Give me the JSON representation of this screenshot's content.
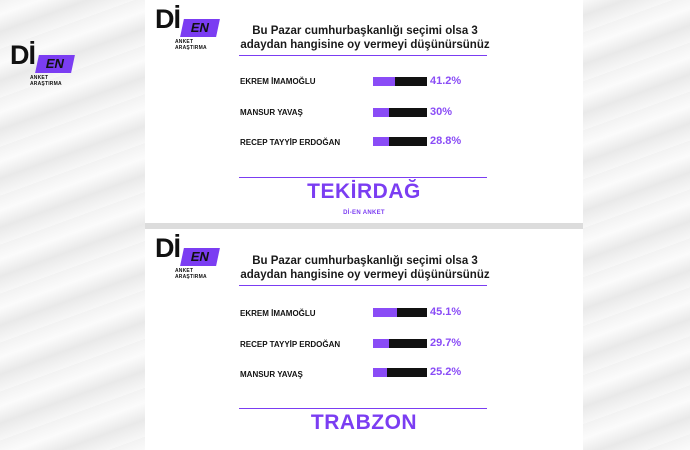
{
  "brand": {
    "di": "Dİ",
    "en": "EN",
    "sub": "ANKET ARAŞTIRMA",
    "accent": "#8a4cf6"
  },
  "panels": [
    {
      "question": "Bu Pazar cumhurbaşkanlığı seçimi olsa 3 adaydan hangisine oy vermeyi düşünürsünüz",
      "candidates": [
        {
          "name": "EKREM İMAMOĞLU",
          "percent": "41.2%",
          "value": 41.2
        },
        {
          "name": "MANSUR YAVAŞ",
          "percent": "30%",
          "value": 30
        },
        {
          "name": "RECEP TAYYİP ERDOĞAN",
          "percent": "28.8%",
          "value": 28.8
        }
      ],
      "region": "TEKİRDAĞ",
      "footer": "Dİ-EN ANKET"
    },
    {
      "question": "Bu Pazar cumhurbaşkanlığı seçimi olsa 3 adaydan hangisine oy vermeyi düşünürsünüz",
      "candidates": [
        {
          "name": "EKREM İMAMOĞLU",
          "percent": "45.1%",
          "value": 45.1
        },
        {
          "name": "RECEP TAYYİP ERDOĞAN",
          "percent": "29.7%",
          "value": 29.7
        },
        {
          "name": "MANSUR YAVAŞ",
          "percent": "25.2%",
          "value": 25.2
        }
      ],
      "region": "TRABZON"
    }
  ]
}
